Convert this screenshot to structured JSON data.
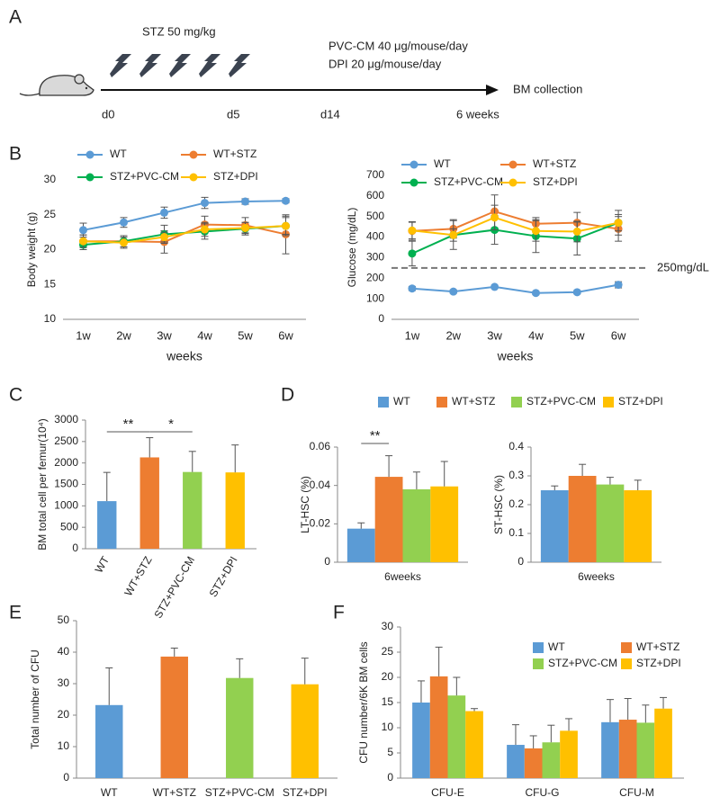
{
  "panel_labels": [
    "A",
    "B",
    "C",
    "D",
    "E",
    "F"
  ],
  "schematic": {
    "treatment": "STZ 50 mg/kg",
    "therapy": [
      "PVC-CM 40 μg/mouse/day",
      "DPI 20 μg/mouse/day"
    ],
    "endpoint": "BM collection",
    "timepoints": [
      "d0",
      "d5",
      "d14",
      "6 weeks"
    ]
  },
  "chart_data": [
    {
      "type": "line",
      "ylabel": "Body weight (g)",
      "xlabel": "weeks",
      "categories": [
        "1w",
        "2w",
        "3w",
        "4w",
        "5w",
        "6w"
      ],
      "ylim": [
        10,
        30
      ],
      "yticks": [
        10,
        15,
        20,
        25,
        30
      ],
      "series": [
        {
          "name": "WT",
          "color": "#5b9bd5",
          "values": [
            22.8,
            23.9,
            25.3,
            26.7,
            26.9,
            27.0
          ],
          "errors": [
            1.0,
            0.7,
            0.8,
            0.8,
            0.4,
            0.3
          ]
        },
        {
          "name": "WT+STZ",
          "color": "#ed7d31",
          "values": [
            21.2,
            21.2,
            21.1,
            23.6,
            23.5,
            22.2
          ],
          "errors": [
            0.9,
            0.8,
            1.6,
            1.2,
            1.1,
            2.8
          ]
        },
        {
          "name": "STZ+PVC-CM",
          "color": "#00b050",
          "values": [
            20.7,
            21.2,
            22.2,
            22.6,
            23.0,
            23.4
          ],
          "errors": [
            0.7,
            0.8,
            1.3,
            1.1,
            0.9,
            1.4
          ]
        },
        {
          "name": "STZ+DPI",
          "color": "#ffc000",
          "values": [
            21.2,
            21.0,
            21.8,
            22.9,
            23.1,
            23.4
          ],
          "errors": [
            0.9,
            0.8,
            0.7,
            1.0,
            0.8,
            1.2
          ]
        }
      ]
    },
    {
      "type": "line",
      "ylabel": "Glucose (mg/dL)",
      "xlabel": "weeks",
      "categories": [
        "1w",
        "2w",
        "3w",
        "4w",
        "5w",
        "6w"
      ],
      "ylim": [
        0,
        700
      ],
      "yticks": [
        0,
        100,
        200,
        300,
        400,
        500,
        600,
        700
      ],
      "reference_line": {
        "value": 250,
        "label": "250mg/dL"
      },
      "series": [
        {
          "name": "WT",
          "color": "#5b9bd5",
          "values": [
            150,
            135,
            158,
            128,
            132,
            168
          ],
          "errors": [
            10,
            8,
            8,
            8,
            8,
            15
          ]
        },
        {
          "name": "WT+STZ",
          "color": "#ed7d31",
          "values": [
            430,
            440,
            525,
            465,
            470,
            440
          ],
          "errors": [
            45,
            45,
            80,
            30,
            50,
            60
          ]
        },
        {
          "name": "STZ+PVC-CM",
          "color": "#00b050",
          "values": [
            320,
            410,
            435,
            405,
            393,
            470
          ],
          "errors": [
            60,
            70,
            70,
            80,
            80,
            40
          ]
        },
        {
          "name": "STZ+DPI",
          "color": "#ffc000",
          "values": [
            432,
            410,
            495,
            430,
            427,
            470
          ],
          "errors": [
            40,
            30,
            60,
            50,
            50,
            60
          ]
        }
      ]
    },
    {
      "type": "bar",
      "ylabel": "BM total cell per femur(10⁴)",
      "categories": [
        "WT",
        "WT+STZ",
        "STZ+PVC-CM",
        "STZ+DPI"
      ],
      "values": [
        1110,
        2130,
        1790,
        1780
      ],
      "errors": [
        670,
        460,
        480,
        640
      ],
      "colors": [
        "#5b9bd5",
        "#ed7d31",
        "#92d050",
        "#ffc000"
      ],
      "ylim": [
        0,
        3000
      ],
      "yticks": [
        0,
        500,
        1000,
        1500,
        2000,
        2500,
        3000
      ],
      "annotations": [
        {
          "text": "**",
          "between": [
            "WT",
            "WT+STZ"
          ]
        },
        {
          "text": "*",
          "between": [
            "WT+STZ",
            "STZ+PVC-CM"
          ]
        }
      ]
    },
    {
      "type": "grouped_bar",
      "ylabel": "LT-HSC (%)",
      "categories": [
        "6weeks"
      ],
      "ylim": [
        0,
        0.06
      ],
      "yticks": [
        0,
        0.02,
        0.04,
        0.06
      ],
      "series": [
        {
          "name": "WT",
          "color": "#5b9bd5",
          "values": [
            0.0175
          ],
          "errors": [
            0.003
          ]
        },
        {
          "name": "WT+STZ",
          "color": "#ed7d31",
          "values": [
            0.0445
          ],
          "errors": [
            0.011
          ]
        },
        {
          "name": "STZ+PVC-CM",
          "color": "#92d050",
          "values": [
            0.038
          ],
          "errors": [
            0.009
          ]
        },
        {
          "name": "STZ+DPI",
          "color": "#ffc000",
          "values": [
            0.0395
          ],
          "errors": [
            0.013
          ]
        }
      ],
      "annotations": [
        {
          "text": "**",
          "between": [
            "WT",
            "WT+STZ"
          ]
        }
      ]
    },
    {
      "type": "grouped_bar",
      "ylabel": "ST-HSC (%)",
      "categories": [
        "6weeks"
      ],
      "ylim": [
        0,
        0.4
      ],
      "yticks": [
        0,
        0.1,
        0.2,
        0.3,
        0.4
      ],
      "series": [
        {
          "color": "#5b9bd5",
          "values": [
            0.25
          ],
          "errors": [
            0.015
          ]
        },
        {
          "color": "#ed7d31",
          "values": [
            0.3
          ],
          "errors": [
            0.04
          ]
        },
        {
          "color": "#92d050",
          "values": [
            0.27
          ],
          "errors": [
            0.025
          ]
        },
        {
          "color": "#ffc000",
          "values": [
            0.25
          ],
          "errors": [
            0.035
          ]
        }
      ]
    },
    {
      "type": "bar",
      "ylabel": "Total number of CFU",
      "categories": [
        "WT",
        "WT+STZ",
        "STZ+PVC-CM",
        "STZ+DPI"
      ],
      "values": [
        23.2,
        38.6,
        31.8,
        29.8
      ],
      "errors": [
        11.8,
        2.7,
        6.1,
        8.3
      ],
      "colors": [
        "#5b9bd5",
        "#ed7d31",
        "#92d050",
        "#ffc000"
      ],
      "ylim": [
        0,
        50
      ],
      "yticks": [
        0,
        10,
        20,
        30,
        40,
        50
      ]
    },
    {
      "type": "grouped_bar",
      "ylabel": "CFU number/6K BM cells",
      "categories": [
        "CFU-E",
        "CFU-G",
        "CFU-M"
      ],
      "ylim": [
        0,
        30
      ],
      "yticks": [
        0,
        5,
        10,
        15,
        20,
        25,
        30
      ],
      "series": [
        {
          "name": "WT",
          "color": "#5b9bd5",
          "values": [
            15.0,
            6.6,
            11.1
          ],
          "errors": [
            4.3,
            4.0,
            4.5
          ]
        },
        {
          "name": "WT+STZ",
          "color": "#ed7d31",
          "values": [
            20.2,
            5.9,
            11.6
          ],
          "errors": [
            5.8,
            2.5,
            4.2
          ]
        },
        {
          "name": "STZ+PVC-CM",
          "color": "#92d050",
          "values": [
            16.4,
            7.1,
            11.0
          ],
          "errors": [
            3.6,
            3.4,
            3.5
          ]
        },
        {
          "name": "STZ+DPI",
          "color": "#ffc000",
          "values": [
            13.3,
            9.4,
            13.8
          ],
          "errors": [
            0.5,
            2.4,
            2.2
          ]
        }
      ]
    }
  ]
}
